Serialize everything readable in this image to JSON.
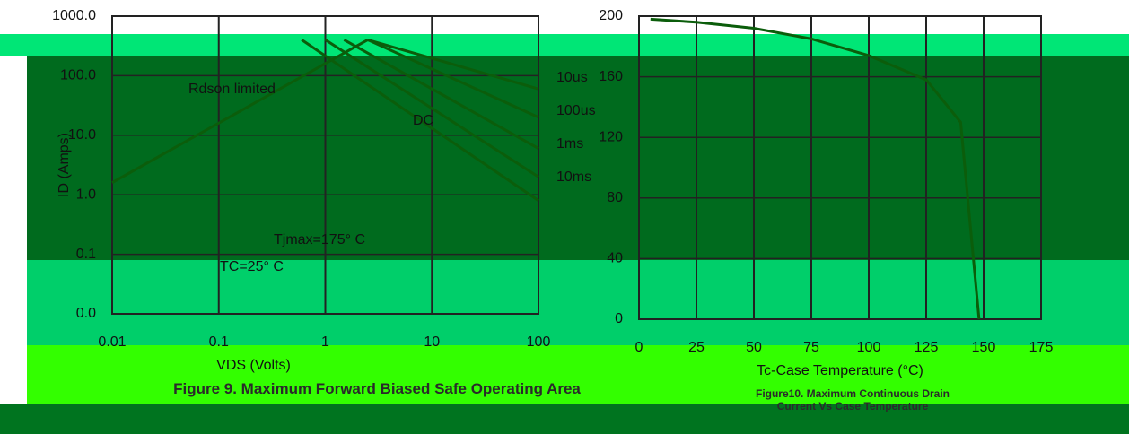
{
  "chart_data": [
    {
      "type": "line",
      "title": "Figure 9. Maximum Forward Biased Safe Operating Area",
      "x_label": "VDS (Volts)",
      "y_label": "ID (Amps)",
      "log_x": true,
      "log_y": true,
      "grid": true,
      "xlim": [
        0.01,
        100
      ],
      "xticks": [
        0.01,
        0.1,
        1,
        10,
        100
      ],
      "ylim": [
        0.01,
        1000
      ],
      "yticks": [
        {
          "value": 0.01,
          "label": "0.0"
        },
        {
          "value": 0.1,
          "label": "0.1"
        },
        {
          "value": 1,
          "label": "1.0"
        },
        {
          "value": 10,
          "label": "10.0"
        },
        {
          "value": 100,
          "label": "100.0"
        },
        {
          "value": 1000,
          "label": "1000.0"
        }
      ],
      "annotations": [
        "TC=25° C",
        "Tjmax=175° C"
      ],
      "series": [
        {
          "name": "Rdson limited",
          "color": "#0b5d0b",
          "x": [
            0.01,
            2.5
          ],
          "values": [
            1.6,
            400
          ]
        },
        {
          "name": "10us",
          "color": "#0b5d0b",
          "x": [
            2.5,
            100
          ],
          "values": [
            400,
            60
          ]
        },
        {
          "name": "100us",
          "color": "#0b5d0b",
          "x": [
            2.5,
            100
          ],
          "values": [
            400,
            20
          ]
        },
        {
          "name": "1ms",
          "color": "#0b5d0b",
          "x": [
            1.5,
            100
          ],
          "values": [
            400,
            6
          ]
        },
        {
          "name": "10ms",
          "color": "#0b5d0b",
          "x": [
            1,
            100
          ],
          "values": [
            400,
            2
          ]
        },
        {
          "name": "DC",
          "color": "#0b5d0b",
          "x": [
            0.6,
            100
          ],
          "values": [
            400,
            0.8
          ]
        }
      ]
    },
    {
      "type": "line",
      "title": "Figure10. Maximum Continuous Drain Current Vs Case Temperature",
      "x_label": "Tc-Case Temperature (°C)",
      "grid": true,
      "xlim": [
        0,
        175
      ],
      "xticks": [
        0,
        25,
        50,
        75,
        100,
        125,
        150,
        175
      ],
      "ylim": [
        0,
        200
      ],
      "yticks": [
        0,
        40,
        80,
        120,
        160,
        200
      ],
      "series": [
        {
          "color": "#0b5d0b",
          "x": [
            5,
            25,
            50,
            75,
            100,
            125,
            140,
            148
          ],
          "values": [
            198,
            196,
            192,
            185,
            174,
            158,
            130,
            0
          ]
        }
      ]
    }
  ]
}
